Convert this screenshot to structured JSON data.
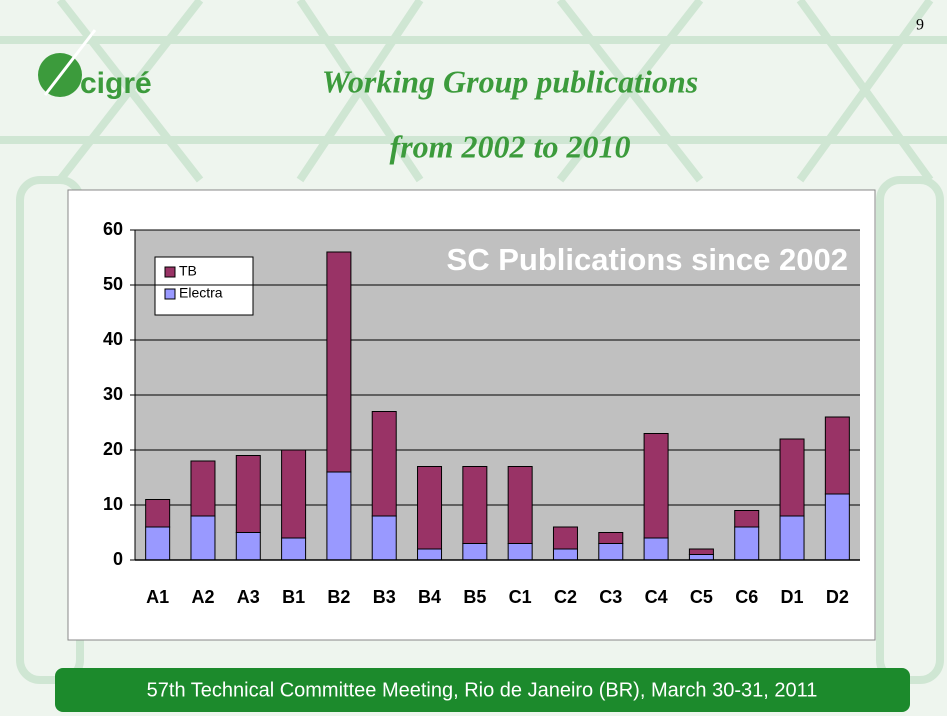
{
  "page_number": "9",
  "logo": "cigré",
  "heading": [
    "Working Group publications",
    "from 2002 to 2010"
  ],
  "footer": "57th Technical Committee Meeting, Rio de Janeiro (BR), March 30-31, 2011",
  "chart_data": {
    "type": "stacked_bar",
    "title": "SC Publications since 2002",
    "categories": [
      "A1",
      "A2",
      "A3",
      "B1",
      "B2",
      "B3",
      "B4",
      "B5",
      "C1",
      "C2",
      "C3",
      "C4",
      "C5",
      "C6",
      "D1",
      "D2"
    ],
    "series": [
      {
        "name": "Electra",
        "color": "#9999ff",
        "values": [
          6,
          8,
          5,
          4,
          16,
          8,
          2,
          3,
          3,
          2,
          3,
          4,
          1,
          6,
          8,
          12
        ]
      },
      {
        "name": "TB",
        "color": "#993366",
        "values": [
          5,
          10,
          14,
          16,
          40,
          19,
          15,
          14,
          14,
          4,
          2,
          19,
          1,
          3,
          14,
          14
        ]
      }
    ],
    "ylim": [
      0,
      60
    ],
    "yticks": [
      0,
      10,
      20,
      30,
      40,
      50,
      60
    ],
    "grid": true,
    "legend": "upper left"
  }
}
